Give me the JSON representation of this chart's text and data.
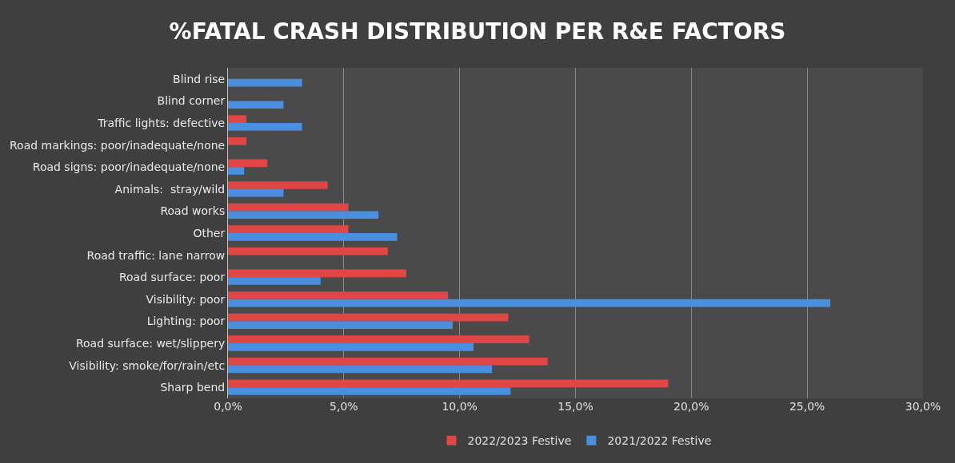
{
  "chart_data": {
    "type": "bar",
    "orientation": "horizontal",
    "title": "%FATAL CRASH DISTRIBUTION PER R&E FACTORS",
    "categories": [
      "Blind rise",
      "Blind corner",
      "Traffic lights: defective",
      "Road markings: poor/inadequate/none",
      "Road signs: poor/inadequate/none",
      "Animals:  stray/wild",
      "Road works",
      "Other",
      "Road traffic: lane narrow",
      "Road surface: poor",
      "Visibility: poor",
      "Lighting: poor",
      "Road surface: wet/slippery",
      "Visibility: smoke/for/rain/etc",
      "Sharp bend"
    ],
    "series": [
      {
        "name": "2022/2023 Festive",
        "color": "#e04646",
        "values": [
          null,
          null,
          0.8,
          0.8,
          1.7,
          4.3,
          5.2,
          5.2,
          6.9,
          7.7,
          9.5,
          12.1,
          13.0,
          13.8,
          19.0
        ]
      },
      {
        "name": "2021/2022 Festive",
        "color": "#4a8ee0",
        "values": [
          3.2,
          2.4,
          3.2,
          null,
          0.7,
          2.4,
          6.5,
          7.3,
          null,
          4.0,
          26.0,
          9.7,
          10.6,
          11.4,
          12.2
        ]
      }
    ],
    "xlim": [
      0,
      30
    ],
    "xticks": [
      {
        "value": 0,
        "label": "0,0%"
      },
      {
        "value": 5,
        "label": "5,0%"
      },
      {
        "value": 10,
        "label": "10,0%"
      },
      {
        "value": 15,
        "label": "15,0%"
      },
      {
        "value": 20,
        "label": "20,0%"
      },
      {
        "value": 25,
        "label": "25,0%"
      },
      {
        "value": 30,
        "label": "30,0%"
      }
    ],
    "grid": "x",
    "legend": "bottom"
  }
}
